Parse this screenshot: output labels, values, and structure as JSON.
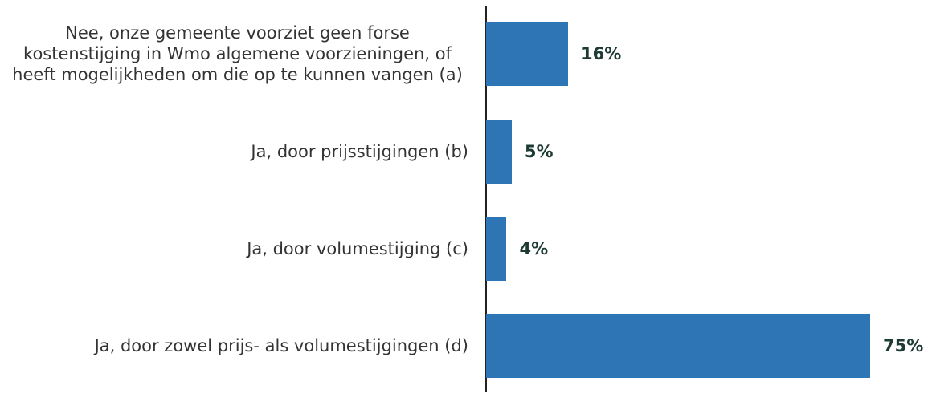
{
  "chart_data": {
    "type": "bar",
    "orientation": "horizontal",
    "categories": [
      "Nee, onze gemeente voorziet geen forse kostenstijging in Wmo algemene voorzieningen, of heeft mogelijkheden om die op te kunnen vangen (a)",
      "Ja, door prijsstijgingen (b)",
      "Ja, door volumestijging (c)",
      "Ja, door zowel prijs- als volumestijgingen (d)"
    ],
    "values": [
      16,
      5,
      4,
      75
    ],
    "value_labels": [
      "16%",
      "5%",
      "4%",
      "75%"
    ],
    "color": "#2e75b6"
  }
}
